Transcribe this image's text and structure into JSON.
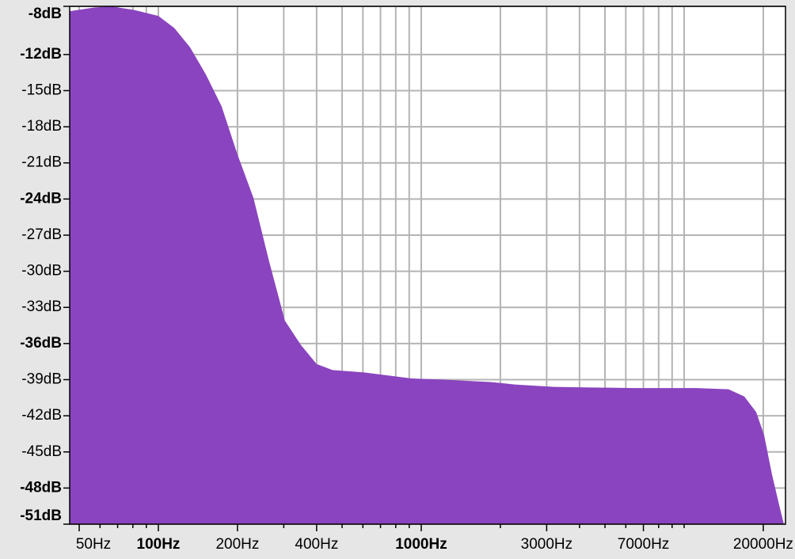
{
  "chart_data": {
    "type": "spectrum",
    "color": "#8a44bf",
    "xscale": "log",
    "grid": true,
    "x": [
      46,
      57,
      66,
      81,
      100,
      115,
      132,
      152,
      174,
      200,
      230,
      264,
      303,
      348,
      400,
      460,
      607,
      920,
      1214,
      1840,
      2266,
      3206,
      6412,
      11170,
      14750,
      16940,
      18800,
      20150,
      21600,
      23100,
      23970
    ],
    "values": [
      -8.4,
      -8.1,
      -8.0,
      -8.3,
      -8.8,
      -9.8,
      -11.4,
      -13.7,
      -16.3,
      -20.3,
      -23.9,
      -29.2,
      -34.1,
      -36.1,
      -37.7,
      -38.2,
      -38.4,
      -38.9,
      -39.0,
      -39.2,
      -39.4,
      -39.6,
      -39.7,
      -39.7,
      -39.8,
      -40.4,
      -41.7,
      -43.6,
      -46.9,
      -49.6,
      -51.0
    ],
    "xlim": [
      46,
      24300
    ],
    "ylim": [
      -51,
      -8
    ],
    "xticks": [
      {
        "value": 50,
        "label": "50Hz"
      },
      {
        "value": 100,
        "label": "100Hz",
        "bold": true
      },
      {
        "value": 200,
        "label": "200Hz"
      },
      {
        "value": 400,
        "label": "400Hz"
      },
      {
        "value": 1000,
        "label": "1000Hz",
        "bold": true
      },
      {
        "value": 3000,
        "label": "3000Hz"
      },
      {
        "value": 7000,
        "label": "7000Hz"
      },
      {
        "value": 20000,
        "label": "20000Hz"
      }
    ],
    "xminor": [
      60,
      70,
      80,
      90,
      300,
      500,
      600,
      700,
      800,
      900,
      2000,
      4000,
      5000,
      6000,
      8000,
      9000,
      10000
    ],
    "yticks": [
      {
        "value": -8,
        "label": "-8dB",
        "bold": true
      },
      {
        "value": -12,
        "label": "-12dB",
        "bold": true
      },
      {
        "value": -15,
        "label": "-15dB"
      },
      {
        "value": -18,
        "label": "-18dB"
      },
      {
        "value": -21,
        "label": "-21dB"
      },
      {
        "value": -24,
        "label": "-24dB",
        "bold": true
      },
      {
        "value": -27,
        "label": "-27dB"
      },
      {
        "value": -30,
        "label": "-30dB"
      },
      {
        "value": -33,
        "label": "-33dB"
      },
      {
        "value": -36,
        "label": "-36dB",
        "bold": true
      },
      {
        "value": -39,
        "label": "-39dB"
      },
      {
        "value": -42,
        "label": "-42dB"
      },
      {
        "value": -45,
        "label": "-45dB"
      },
      {
        "value": -48,
        "label": "-48dB",
        "bold": true
      },
      {
        "value": -51,
        "label": "-51dB",
        "bold": true
      }
    ]
  }
}
